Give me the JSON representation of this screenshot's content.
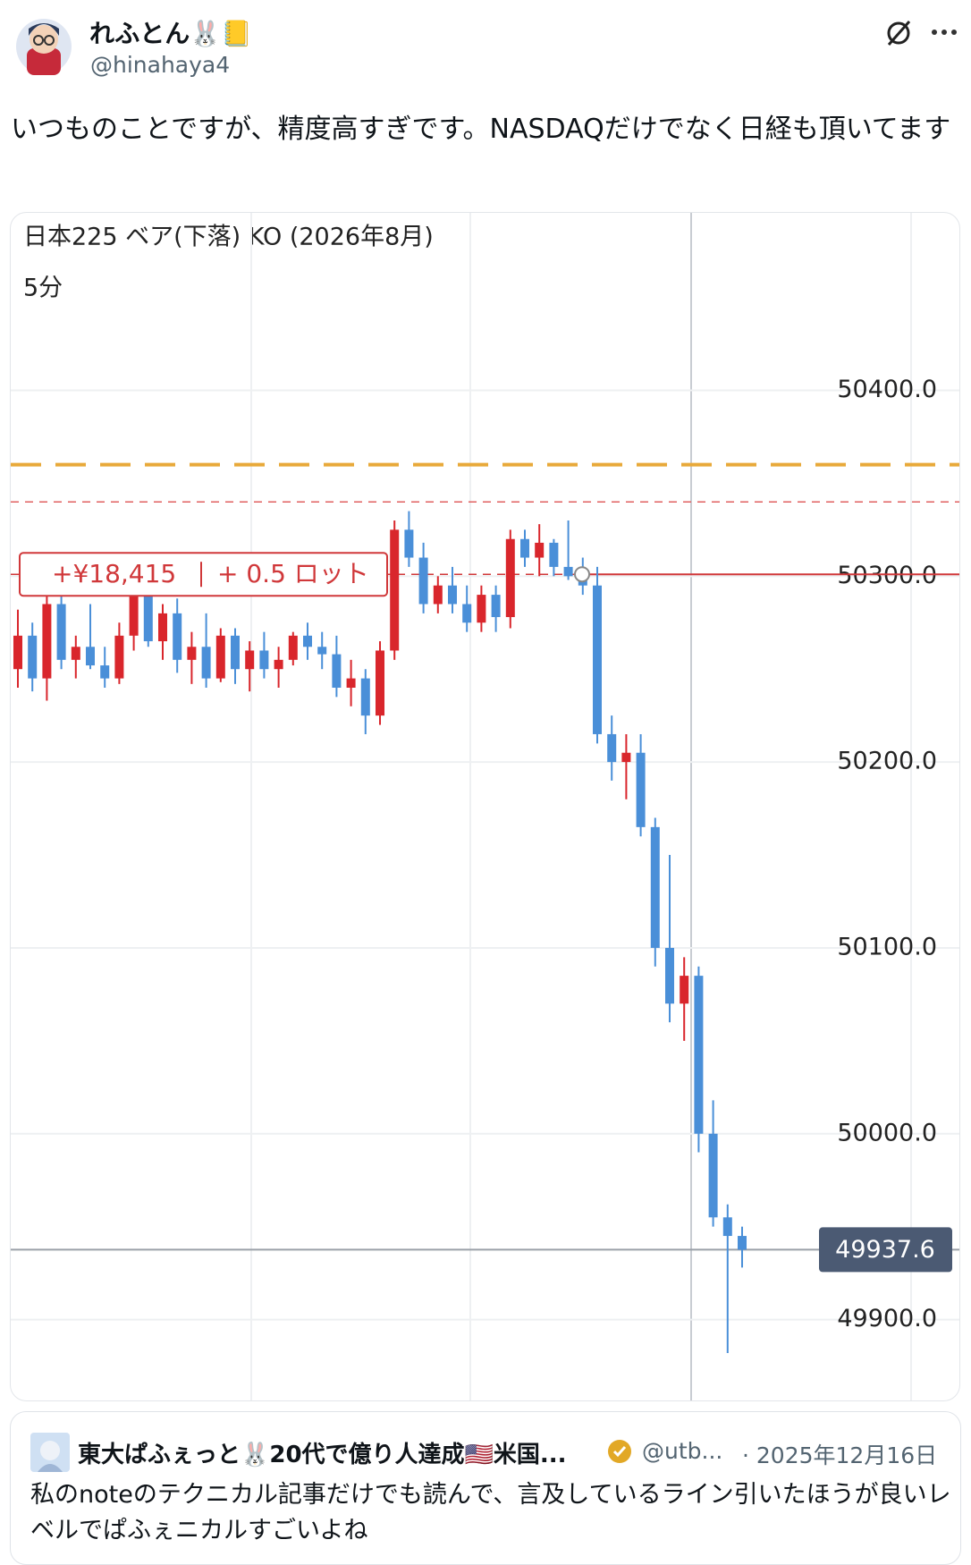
{
  "post": {
    "name": "れふとん🐰📒",
    "handle": "@hinahaya4",
    "text": "いつものことですが、精度高すぎです。NASDAQだけでなく日経も頂いてます"
  },
  "chart_data": {
    "type": "candlestick",
    "title": "日本225 ベア(下落) KO (2026年8月)",
    "timeframe": "5分",
    "ylim": [
      49856,
      50496
    ],
    "yticks": [
      {
        "value": 49900,
        "label": "49900.0"
      },
      {
        "value": 50000,
        "label": "50000.0"
      },
      {
        "value": 50100,
        "label": "50100.0"
      },
      {
        "value": 50200,
        "label": "50200.0"
      },
      {
        "value": 50300,
        "label": "50300.0"
      },
      {
        "value": 50400,
        "label": "50400.0"
      }
    ],
    "up_color": "#d9262c",
    "down_color": "#4a8fd8",
    "candles": [
      [
        50250,
        50282,
        50240,
        50268
      ],
      [
        50268,
        50275,
        50238,
        50245
      ],
      [
        50245,
        50290,
        50233,
        50285
      ],
      [
        50285,
        50292,
        50250,
        50255
      ],
      [
        50255,
        50268,
        50245,
        50262
      ],
      [
        50262,
        50285,
        50250,
        50252
      ],
      [
        50252,
        50262,
        50240,
        50245
      ],
      [
        50245,
        50275,
        50242,
        50268
      ],
      [
        50268,
        50295,
        50260,
        50290
      ],
      [
        50290,
        50303,
        50262,
        50265
      ],
      [
        50265,
        50285,
        50255,
        50280
      ],
      [
        50280,
        50288,
        50248,
        50255
      ],
      [
        50255,
        50270,
        50242,
        50262
      ],
      [
        50262,
        50280,
        50240,
        50245
      ],
      [
        50245,
        50272,
        50243,
        50268
      ],
      [
        50268,
        50272,
        50242,
        50250
      ],
      [
        50250,
        50265,
        50238,
        50260
      ],
      [
        50260,
        50270,
        50245,
        50250
      ],
      [
        50250,
        50262,
        50240,
        50255
      ],
      [
        50255,
        50270,
        50252,
        50268
      ],
      [
        50268,
        50275,
        50255,
        50262
      ],
      [
        50262,
        50270,
        50250,
        50258
      ],
      [
        50258,
        50268,
        50235,
        50240
      ],
      [
        50240,
        50255,
        50230,
        50245
      ],
      [
        50245,
        50250,
        50215,
        50225
      ],
      [
        50225,
        50265,
        50220,
        50260
      ],
      [
        50260,
        50330,
        50255,
        50325
      ],
      [
        50325,
        50335,
        50305,
        50310
      ],
      [
        50310,
        50318,
        50280,
        50285
      ],
      [
        50285,
        50300,
        50280,
        50295
      ],
      [
        50295,
        50305,
        50280,
        50285
      ],
      [
        50285,
        50295,
        50270,
        50275
      ],
      [
        50275,
        50295,
        50270,
        50290
      ],
      [
        50290,
        50295,
        50270,
        50278
      ],
      [
        50278,
        50325,
        50272,
        50320
      ],
      [
        50320,
        50325,
        50305,
        50310
      ],
      [
        50310,
        50328,
        50300,
        50318
      ],
      [
        50318,
        50320,
        50300,
        50305
      ],
      [
        50305,
        50330,
        50298,
        50300
      ],
      [
        50300,
        50310,
        50290,
        50295
      ],
      [
        50295,
        50305,
        50210,
        50215
      ],
      [
        50215,
        50225,
        50190,
        50200
      ],
      [
        50200,
        50215,
        50180,
        50205
      ],
      [
        50205,
        50215,
        50160,
        50165
      ],
      [
        50165,
        50170,
        50090,
        50100
      ],
      [
        50100,
        50150,
        50060,
        50070
      ],
      [
        50070,
        50095,
        50050,
        50085
      ],
      [
        50085,
        50090,
        49990,
        50000
      ],
      [
        50000,
        50018,
        49950,
        49955
      ],
      [
        49955,
        49962,
        49882,
        49945
      ],
      [
        49945,
        49950,
        49928,
        49937.6
      ]
    ],
    "last_price": 49937.6,
    "levels": [
      {
        "value": 50360,
        "color": "#e8a93a"
      },
      {
        "value": 50340,
        "color": "#e06060"
      }
    ],
    "position": {
      "value": 50301,
      "profit": "+¥18,415",
      "size": "+ 0.5 ロット",
      "color": "#d0383a"
    }
  },
  "quote": {
    "name": "東大ぱふぇっと🐰20代で億り人達成🇺🇸米国...",
    "handle": "@utb...",
    "date": "· 2025年12月16日",
    "text": "私のnoteのテクニカル記事だけでも読んで、言及しているライン引いたほうが良いレベルでぱふぇニカルすごいよね"
  }
}
